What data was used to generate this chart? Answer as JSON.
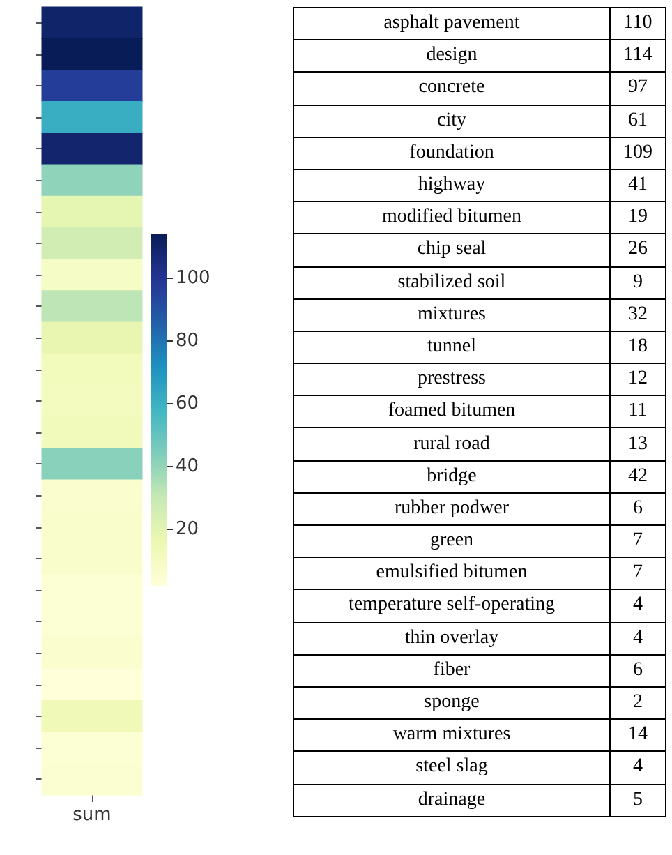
{
  "chart_data": [
    {
      "type": "heatmap",
      "categories": [
        "sum"
      ],
      "y_categories": [
        null,
        null,
        null,
        null,
        null,
        null,
        null,
        null,
        null,
        null,
        null,
        null,
        null,
        null,
        null,
        null,
        null,
        null,
        null,
        null,
        null,
        null,
        null,
        null,
        null
      ],
      "cells": [
        [
          110
        ],
        [
          114
        ],
        [
          97
        ],
        [
          61
        ],
        [
          109
        ],
        [
          41
        ],
        [
          19
        ],
        [
          26
        ],
        [
          9
        ],
        [
          32
        ],
        [
          18
        ],
        [
          12
        ],
        [
          11
        ],
        [
          13
        ],
        [
          42
        ],
        [
          6
        ],
        [
          7
        ],
        [
          7
        ],
        [
          4
        ],
        [
          4
        ],
        [
          6
        ],
        [
          2
        ],
        [
          14
        ],
        [
          4
        ],
        [
          5
        ]
      ],
      "tick_labels": "x",
      "clim": [
        2,
        114
      ],
      "cticks": [
        20,
        40,
        60,
        80,
        100
      ]
    },
    {
      "type": "other",
      "categories": [
        "asphalt pavement",
        "design",
        "concrete",
        "city",
        "foundation",
        "highway",
        "modified bitumen",
        "chip seal",
        "stabilized soil",
        "mixtures",
        "tunnel",
        "prestress",
        "foamed bitumen",
        "rural road",
        "bridge",
        "rubber podwer",
        "green",
        "emulsified bitumen",
        "temperature self-operating",
        "thin overlay",
        "fiber",
        "sponge",
        "warm mixtures",
        "steel slag",
        "drainage"
      ],
      "values": [
        110,
        114,
        97,
        61,
        109,
        41,
        19,
        26,
        9,
        32,
        18,
        12,
        11,
        13,
        42,
        6,
        7,
        7,
        4,
        4,
        6,
        2,
        14,
        4,
        5
      ],
      "data_labels": true
    }
  ]
}
